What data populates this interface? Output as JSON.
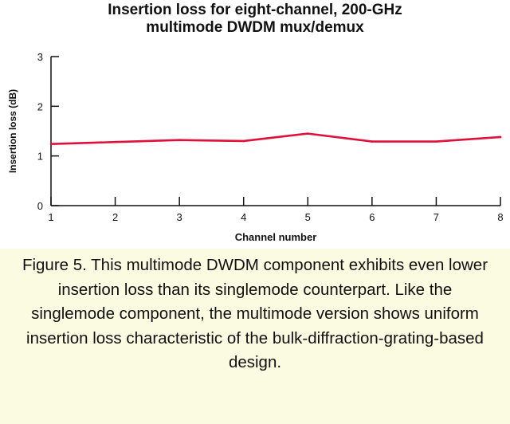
{
  "chart_data": {
    "type": "line",
    "title_lines": [
      "Insertion loss for eight-channel, 200-GHz",
      "multimode DWDM mux/demux"
    ],
    "xlabel": "Channel number",
    "ylabel": "Insertion loss (dB)",
    "x": [
      1,
      2,
      3,
      4,
      5,
      6,
      7,
      8
    ],
    "series": [
      {
        "values": [
          1.24,
          1.28,
          1.32,
          1.3,
          1.45,
          1.29,
          1.29,
          1.38
        ]
      }
    ],
    "xlim": [
      1,
      8
    ],
    "ylim": [
      0,
      3
    ],
    "x_ticks": [
      "1",
      "2",
      "3",
      "4",
      "5",
      "6",
      "7",
      "8"
    ],
    "y_ticks": [
      "0",
      "1",
      "2",
      "3"
    ],
    "grid": false,
    "line_color": "#e0103a"
  },
  "caption": "Figure 5. This multimode DWDM component exhibits even lower insertion loss than its singlemode counterpart. Like the singlemode component, the multimode version shows uniform insertion loss characteristic of the bulk-diffraction-grating-based design."
}
